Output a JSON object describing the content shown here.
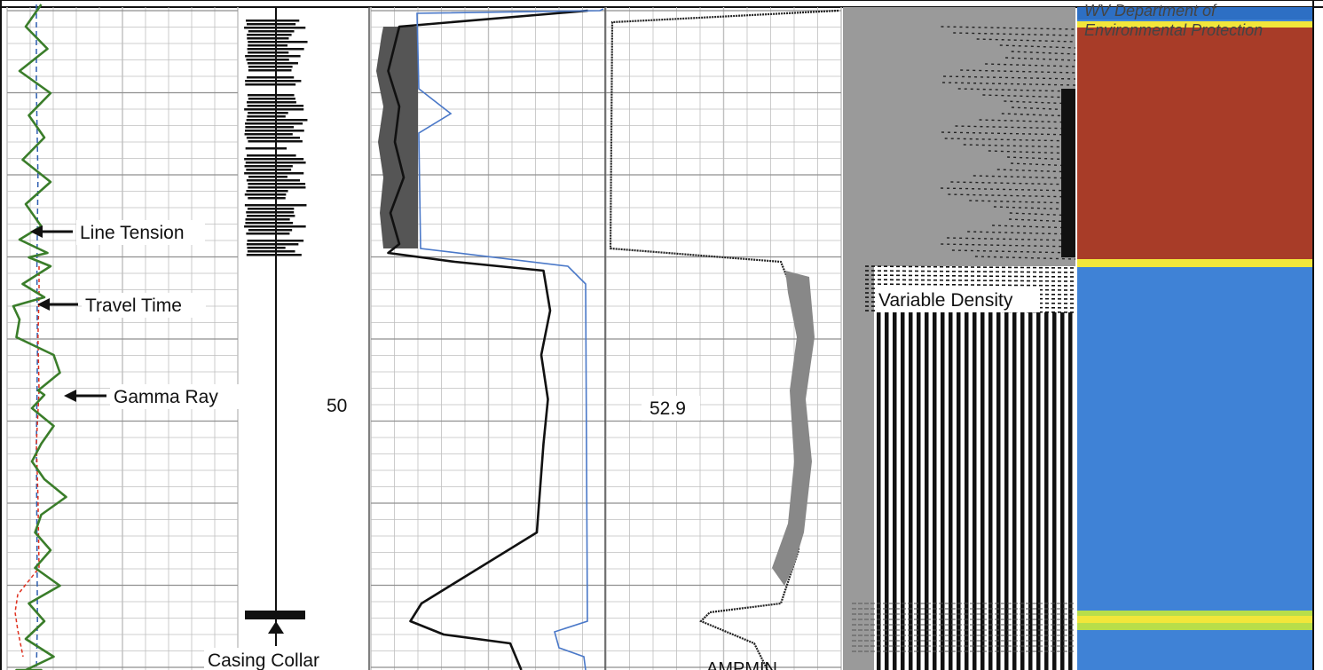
{
  "chart_data": {
    "type": "line",
    "title": "",
    "watermark": [
      "WV Department of",
      "Environmental Protection"
    ],
    "depth_labels": [
      "50",
      "52.9"
    ],
    "annotations": {
      "line_tension": "Line Tension",
      "travel_time": "Travel Time",
      "gamma_ray": "Gamma Ray",
      "casing_collar": "Casing Collar",
      "variable_density": "Variable Density",
      "amp_min": "AMPMIN"
    },
    "colors": {
      "gamma_ray": "#3a7d2a",
      "line_tension": "#2f5fb0",
      "travel_time": "#e0301e",
      "amplitude": "#111111",
      "amplitude_blue": "#4a78c8",
      "image_red": "#a83c28",
      "image_blue": "#3f82d6",
      "image_yellow": "#f2e63a",
      "grid": "#bfbfbf"
    },
    "series": [
      {
        "key": "gamma_ray",
        "x": [
          0.55,
          0.3,
          0.65,
          0.2,
          0.7,
          0.35,
          0.6,
          0.25,
          0.7,
          0.3,
          0.55,
          0.2,
          0.65,
          0.35,
          0.7,
          0.25,
          0.6,
          0.1,
          0.2,
          0.15,
          0.75,
          0.85,
          0.5,
          0.6,
          0.4,
          0.75,
          0.55,
          0.4,
          0.6,
          0.95,
          0.55,
          0.45,
          0.7,
          0.45,
          0.85,
          0.35,
          0.6,
          0.3,
          0.75,
          0.3,
          0.55,
          0.25,
          0.45,
          0.2,
          0.15,
          0.2,
          0.25,
          0.3
        ],
        "y": [
          5,
          30,
          55,
          80,
          105,
          130,
          155,
          180,
          205,
          230,
          255,
          270,
          285,
          290,
          300,
          320,
          335,
          345,
          360,
          380,
          400,
          420,
          440,
          445,
          460,
          480,
          500,
          520,
          540,
          560,
          580,
          600,
          620,
          640,
          660,
          680,
          700,
          720,
          740,
          755,
          755,
          755,
          755,
          755,
          755,
          755,
          755,
          755
        ]
      },
      {
        "key": "line_tension",
        "x": [
          0.55,
          0.55,
          0.58,
          0.56,
          0.57,
          0.55,
          0.56,
          0.57,
          0.55
        ],
        "y": [
          5,
          100,
          200,
          300,
          400,
          500,
          600,
          700,
          755
        ]
      },
      {
        "key": "travel_time",
        "x": [
          0.6,
          0.6,
          0.58,
          0.6,
          0.55,
          0.58,
          0.6,
          0.2,
          0.15,
          0.2,
          0.3
        ],
        "y": [
          300,
          330,
          380,
          440,
          500,
          560,
          640,
          670,
          690,
          710,
          740
        ]
      },
      {
        "key": "amplitude",
        "x": [
          0.95,
          0.1,
          0.05,
          0.1,
          0.08,
          0.12,
          0.06,
          0.1,
          0.05,
          0.35,
          0.75,
          0.78,
          0.74,
          0.77,
          0.75,
          0.72,
          0.2,
          0.15,
          0.3,
          0.6,
          0.65
        ],
        "y": [
          12,
          30,
          80,
          120,
          160,
          200,
          240,
          275,
          285,
          295,
          305,
          350,
          400,
          450,
          500,
          600,
          680,
          700,
          715,
          725,
          755
        ]
      }
    ]
  }
}
